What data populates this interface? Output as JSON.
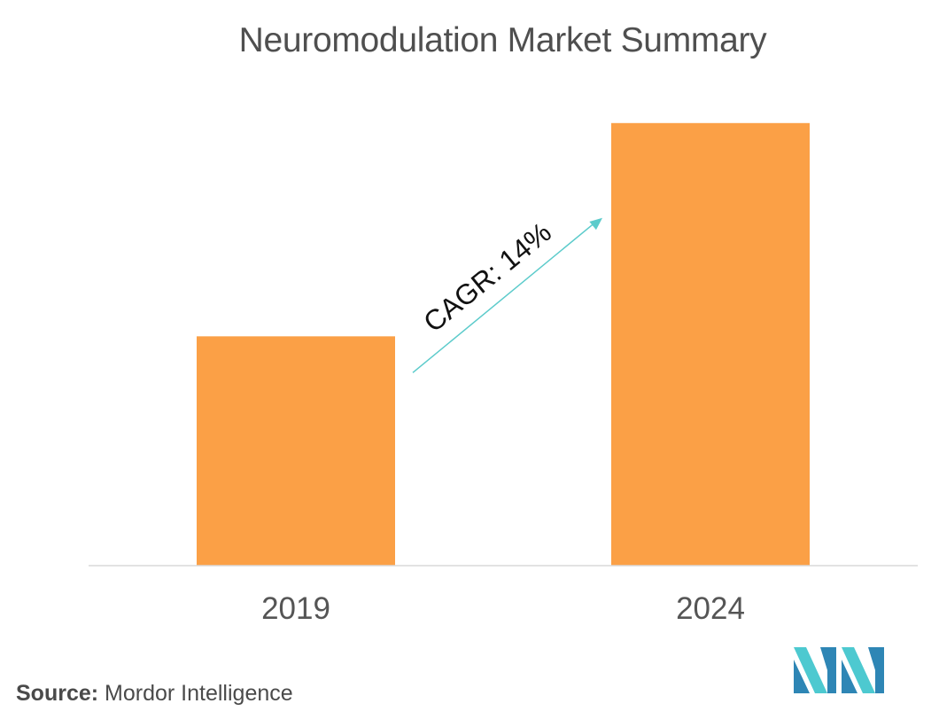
{
  "chart_data": {
    "type": "bar",
    "title": "Neuromodulation Market Summary",
    "categories": [
      "2019",
      "2024"
    ],
    "values": [
      1.0,
      1.93
    ],
    "ylim": [
      0,
      2.08
    ],
    "xlabel": "",
    "ylabel": "",
    "grid": false,
    "legend": "none",
    "annotation": {
      "text": "CAGR: 14%",
      "from_category": "2019",
      "to_category": "2024"
    },
    "colors": {
      "bar": "#FBA046",
      "arrow": "#5CCBCB",
      "axis": "#D9D9D9",
      "tick_text": "#555555"
    }
  },
  "source": {
    "label": "Source:",
    "text": " Mordor Intelligence"
  },
  "logo": {
    "icon": "mordor-intelligence-logo-icon",
    "colors": [
      "#4DC9D0",
      "#2E86B5"
    ]
  }
}
